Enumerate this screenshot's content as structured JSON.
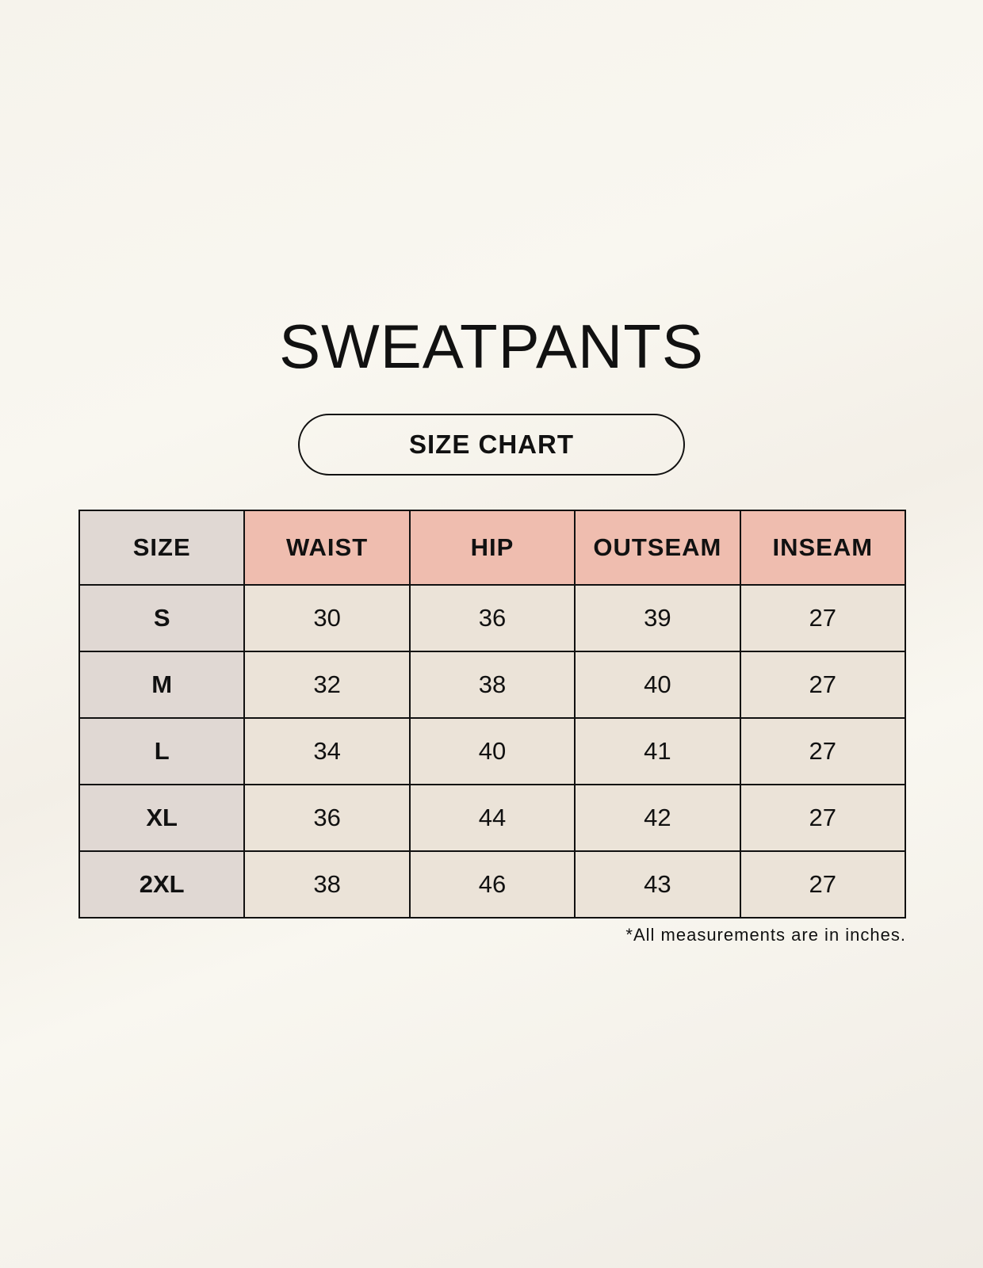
{
  "title": "SWEATPANTS",
  "subtitle": "SIZE CHART",
  "table": {
    "headers": [
      "SIZE",
      "WAIST",
      "HIP",
      "OUTSEAM",
      "INSEAM"
    ],
    "rows": [
      [
        "S",
        "30",
        "36",
        "39",
        "27"
      ],
      [
        "M",
        "32",
        "38",
        "40",
        "27"
      ],
      [
        "L",
        "34",
        "40",
        "41",
        "27"
      ],
      [
        "XL",
        "36",
        "44",
        "42",
        "27"
      ],
      [
        "2XL",
        "38",
        "46",
        "43",
        "27"
      ]
    ]
  },
  "footnote": "*All measurements are in inches.",
  "colors": {
    "header_accent": "#efbdaf",
    "size_column": "#e0d8d3",
    "cell": "#ebe3d8"
  }
}
